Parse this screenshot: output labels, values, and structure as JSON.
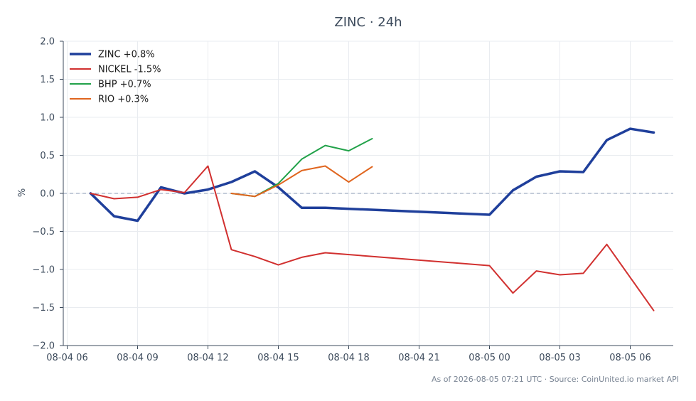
{
  "chart_data": {
    "type": "line",
    "title": "ZINC · 24h",
    "ylabel": "%",
    "xlabel": "",
    "ylim": [
      -2.0,
      2.0
    ],
    "yticks": [
      -2.0,
      -1.5,
      -1.0,
      -0.5,
      0.0,
      0.5,
      1.0,
      1.5,
      2.0
    ],
    "ytick_labels": [
      "−2.0",
      "−1.5",
      "−1.0",
      "−0.5",
      "0.0",
      "0.5",
      "1.0",
      "1.5",
      "2.0"
    ],
    "xlim": [
      "2026-08-04 05:50",
      "2026-08-05 07:50"
    ],
    "xticks": [
      "2026-08-04 06:00",
      "2026-08-04 09:00",
      "2026-08-04 12:00",
      "2026-08-04 15:00",
      "2026-08-04 18:00",
      "2026-08-04 21:00",
      "2026-08-05 00:00",
      "2026-08-05 03:00",
      "2026-08-05 06:00"
    ],
    "xtick_labels": [
      "08-04 06",
      "08-04 09",
      "08-04 12",
      "08-04 15",
      "08-04 18",
      "08-04 21",
      "08-05 00",
      "08-05 03",
      "08-05 06"
    ],
    "grid": true,
    "reference_line": 0.0,
    "legend_position": "top-left",
    "series": [
      {
        "name": "ZINC +0.8%",
        "color": "#1f3f9b",
        "emphasis": "thick",
        "x": [
          "2026-08-04 07:00",
          "2026-08-04 08:00",
          "2026-08-04 09:00",
          "2026-08-04 10:00",
          "2026-08-04 11:00",
          "2026-08-04 12:00",
          "2026-08-04 13:00",
          "2026-08-04 14:00",
          "2026-08-04 15:00",
          "2026-08-04 16:00",
          "2026-08-04 17:00",
          "2026-08-05 00:00",
          "2026-08-05 01:00",
          "2026-08-05 02:00",
          "2026-08-05 03:00",
          "2026-08-05 04:00",
          "2026-08-05 05:00",
          "2026-08-05 06:00",
          "2026-08-05 07:00"
        ],
        "y": [
          0.0,
          -0.3,
          -0.36,
          0.08,
          0.0,
          0.05,
          0.15,
          0.29,
          0.08,
          -0.19,
          -0.19,
          -0.28,
          0.04,
          0.22,
          0.29,
          0.28,
          0.7,
          0.85,
          0.8
        ]
      },
      {
        "name": "NICKEL -1.5%",
        "color": "#d1302f",
        "emphasis": "normal",
        "x": [
          "2026-08-04 07:00",
          "2026-08-04 08:00",
          "2026-08-04 09:00",
          "2026-08-04 10:00",
          "2026-08-04 11:00",
          "2026-08-04 12:00",
          "2026-08-04 13:00",
          "2026-08-04 14:00",
          "2026-08-04 15:00",
          "2026-08-04 16:00",
          "2026-08-04 17:00",
          "2026-08-05 00:00",
          "2026-08-05 01:00",
          "2026-08-05 02:00",
          "2026-08-05 03:00",
          "2026-08-05 04:00",
          "2026-08-05 05:00",
          "2026-08-05 07:00"
        ],
        "y": [
          0.0,
          -0.07,
          -0.05,
          0.05,
          0.01,
          0.36,
          -0.74,
          -0.83,
          -0.94,
          -0.84,
          -0.78,
          -0.95,
          -1.31,
          -1.02,
          -1.07,
          -1.05,
          -0.67,
          -1.54
        ]
      },
      {
        "name": "BHP +0.7%",
        "color": "#22a24a",
        "emphasis": "normal",
        "x": [
          "2026-08-04 13:00",
          "2026-08-04 14:00",
          "2026-08-04 15:00",
          "2026-08-04 16:00",
          "2026-08-04 17:00",
          "2026-08-04 18:00",
          "2026-08-04 19:00"
        ],
        "y": [
          0.0,
          -0.04,
          0.13,
          0.45,
          0.63,
          0.56,
          0.72
        ]
      },
      {
        "name": "RIO +0.3%",
        "color": "#e0651e",
        "emphasis": "normal",
        "x": [
          "2026-08-04 13:00",
          "2026-08-04 14:00",
          "2026-08-04 15:00",
          "2026-08-04 16:00",
          "2026-08-04 17:00",
          "2026-08-04 18:00",
          "2026-08-04 19:00"
        ],
        "y": [
          0.0,
          -0.04,
          0.11,
          0.3,
          0.36,
          0.15,
          0.35
        ]
      }
    ],
    "footer": "As of 2026-08-05 07:21 UTC · Source: CoinUnited.io market API"
  },
  "colors": {
    "axis": "#3d4b5c",
    "grid": "#e9ecf0",
    "reference_line": "#8a99b3",
    "text": "#3d4b5c",
    "footer": "#7a8594"
  }
}
